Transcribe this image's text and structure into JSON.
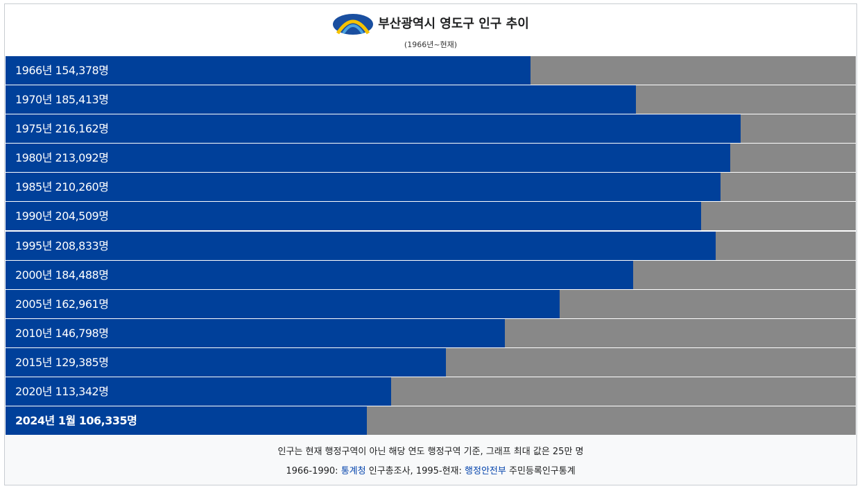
{
  "chart_data": {
    "type": "bar",
    "orientation": "horizontal",
    "title": "부산광역시 영도구 인구 추이",
    "subtitle": "(1966년~현재)",
    "categories": [
      "1966년",
      "1970년",
      "1975년",
      "1980년",
      "1985년",
      "1990년",
      "1995년",
      "2000년",
      "2005년",
      "2010년",
      "2015년",
      "2020년",
      "2024년 1월"
    ],
    "values": [
      154378,
      185413,
      216162,
      213092,
      210260,
      204509,
      208833,
      184488,
      162961,
      146798,
      129385,
      113342,
      106335
    ],
    "value_labels": [
      "154,378명",
      "185,413명",
      "216,162명",
      "213,092명",
      "210,260명",
      "204,509명",
      "208,833명",
      "184,488명",
      "162,961명",
      "146,798명",
      "129,385명",
      "113,342명",
      "106,335명"
    ],
    "color": "#00409a",
    "track_color": "#888888",
    "xlim": [
      0,
      250000
    ],
    "notes": {
      "line1": "인구는 현재 행정구역이 아닌 해당 연도 행정구역 기준, 그래프 최대 값은 25만 명",
      "line2": [
        "1966-1990:",
        "통계청",
        "인구총조사, 1995-현재:",
        "행정안전부",
        "주민등록인구통계"
      ]
    }
  }
}
